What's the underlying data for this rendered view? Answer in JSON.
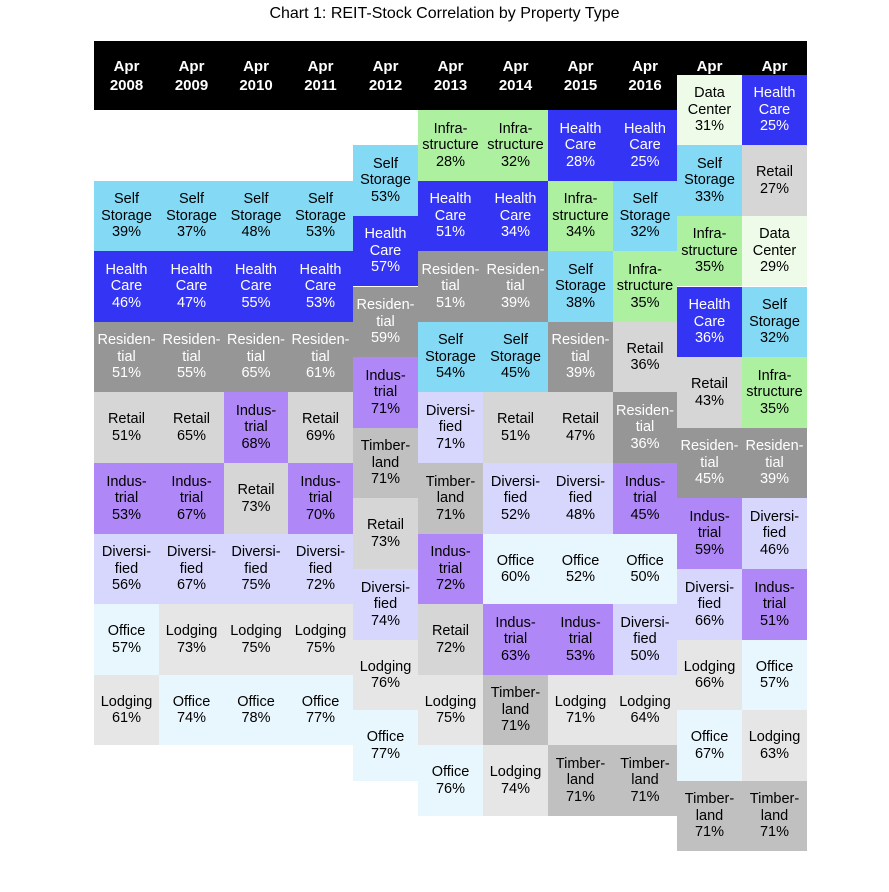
{
  "chart_data": {
    "type": "table",
    "title": "Chart 1: REIT-Stock Correlation by Property Type",
    "columns": [
      {
        "label": [
          "Apr",
          "2008"
        ],
        "items": [
          {
            "label": [
              "Self",
              "Storage"
            ],
            "value": "39%",
            "category": "Self Storage"
          },
          {
            "label": [
              "Health",
              "Care"
            ],
            "value": "46%",
            "category": "Health Care"
          },
          {
            "label": [
              "Residen-",
              "tial"
            ],
            "value": "51%",
            "category": "Residential"
          },
          {
            "label": [
              "Retail"
            ],
            "value": "51%",
            "category": "Retail"
          },
          {
            "label": [
              "Indus-",
              "trial"
            ],
            "value": "53%",
            "category": "Industrial"
          },
          {
            "label": [
              "Diversi-",
              "fied"
            ],
            "value": "56%",
            "category": "Diversified"
          },
          {
            "label": [
              "Office"
            ],
            "value": "57%",
            "category": "Office"
          },
          {
            "label": [
              "Lodging"
            ],
            "value": "61%",
            "category": "Lodging"
          }
        ]
      },
      {
        "label": [
          "Apr",
          "2009"
        ],
        "items": [
          {
            "label": [
              "Self",
              "Storage"
            ],
            "value": "37%",
            "category": "Self Storage"
          },
          {
            "label": [
              "Health",
              "Care"
            ],
            "value": "47%",
            "category": "Health Care"
          },
          {
            "label": [
              "Residen-",
              "tial"
            ],
            "value": "55%",
            "category": "Residential"
          },
          {
            "label": [
              "Retail"
            ],
            "value": "65%",
            "category": "Retail"
          },
          {
            "label": [
              "Indus-",
              "trial"
            ],
            "value": "67%",
            "category": "Industrial"
          },
          {
            "label": [
              "Diversi-",
              "fied"
            ],
            "value": "67%",
            "category": "Diversified"
          },
          {
            "label": [
              "Lodging"
            ],
            "value": "73%",
            "category": "Lodging"
          },
          {
            "label": [
              "Office"
            ],
            "value": "74%",
            "category": "Office"
          }
        ]
      },
      {
        "label": [
          "Apr",
          "2010"
        ],
        "items": [
          {
            "label": [
              "Self",
              "Storage"
            ],
            "value": "48%",
            "category": "Self Storage"
          },
          {
            "label": [
              "Health",
              "Care"
            ],
            "value": "55%",
            "category": "Health Care"
          },
          {
            "label": [
              "Residen-",
              "tial"
            ],
            "value": "65%",
            "category": "Residential"
          },
          {
            "label": [
              "Indus-",
              "trial"
            ],
            "value": "68%",
            "category": "Industrial"
          },
          {
            "label": [
              "Retail"
            ],
            "value": "73%",
            "category": "Retail"
          },
          {
            "label": [
              "Diversi-",
              "fied"
            ],
            "value": "75%",
            "category": "Diversified"
          },
          {
            "label": [
              "Lodging"
            ],
            "value": "75%",
            "category": "Lodging"
          },
          {
            "label": [
              "Office"
            ],
            "value": "78%",
            "category": "Office"
          }
        ]
      },
      {
        "label": [
          "Apr",
          "2011"
        ],
        "items": [
          {
            "label": [
              "Self",
              "Storage"
            ],
            "value": "53%",
            "category": "Self Storage"
          },
          {
            "label": [
              "Health",
              "Care"
            ],
            "value": "53%",
            "category": "Health Care"
          },
          {
            "label": [
              "Residen-",
              "tial"
            ],
            "value": "61%",
            "category": "Residential"
          },
          {
            "label": [
              "Retail"
            ],
            "value": "69%",
            "category": "Retail"
          },
          {
            "label": [
              "Indus-",
              "trial"
            ],
            "value": "70%",
            "category": "Industrial"
          },
          {
            "label": [
              "Diversi-",
              "fied"
            ],
            "value": "72%",
            "category": "Diversified"
          },
          {
            "label": [
              "Lodging"
            ],
            "value": "75%",
            "category": "Lodging"
          },
          {
            "label": [
              "Office"
            ],
            "value": "77%",
            "category": "Office"
          }
        ]
      },
      {
        "label": [
          "Apr",
          "2012"
        ],
        "items": [
          {
            "label": [
              "Self",
              "Storage"
            ],
            "value": "53%",
            "category": "Self Storage"
          },
          {
            "label": [
              "Health",
              "Care"
            ],
            "value": "57%",
            "category": "Health Care"
          },
          {
            "label": [
              "Residen-",
              "tial"
            ],
            "value": "59%",
            "category": "Residential"
          },
          {
            "label": [
              "Indus-",
              "trial"
            ],
            "value": "71%",
            "category": "Industrial"
          },
          {
            "label": [
              "Timber-",
              "land"
            ],
            "value": "71%",
            "category": "Timberland"
          },
          {
            "label": [
              "Retail"
            ],
            "value": "73%",
            "category": "Retail"
          },
          {
            "label": [
              "Diversi-",
              "fied"
            ],
            "value": "74%",
            "category": "Diversified"
          },
          {
            "label": [
              "Lodging"
            ],
            "value": "76%",
            "category": "Lodging"
          },
          {
            "label": [
              "Office"
            ],
            "value": "77%",
            "category": "Office"
          }
        ]
      },
      {
        "label": [
          "Apr",
          "2013"
        ],
        "items": [
          {
            "label": [
              "Infra-",
              "structure"
            ],
            "value": "28%",
            "category": "Infrastructure"
          },
          {
            "label": [
              "Health",
              "Care"
            ],
            "value": "51%",
            "category": "Health Care"
          },
          {
            "label": [
              "Residen-",
              "tial"
            ],
            "value": "51%",
            "category": "Residential"
          },
          {
            "label": [
              "Self",
              "Storage"
            ],
            "value": "54%",
            "category": "Self Storage"
          },
          {
            "label": [
              "Diversi-",
              "fied"
            ],
            "value": "71%",
            "category": "Diversified"
          },
          {
            "label": [
              "Timber-",
              "land"
            ],
            "value": "71%",
            "category": "Timberland"
          },
          {
            "label": [
              "Indus-",
              "trial"
            ],
            "value": "72%",
            "category": "Industrial"
          },
          {
            "label": [
              "Retail"
            ],
            "value": "72%",
            "category": "Retail"
          },
          {
            "label": [
              "Lodging"
            ],
            "value": "75%",
            "category": "Lodging"
          },
          {
            "label": [
              "Office"
            ],
            "value": "76%",
            "category": "Office"
          }
        ]
      },
      {
        "label": [
          "Apr",
          "2014"
        ],
        "items": [
          {
            "label": [
              "Infra-",
              "structure"
            ],
            "value": "32%",
            "category": "Infrastructure"
          },
          {
            "label": [
              "Health",
              "Care"
            ],
            "value": "34%",
            "category": "Health Care"
          },
          {
            "label": [
              "Residen-",
              "tial"
            ],
            "value": "39%",
            "category": "Residential"
          },
          {
            "label": [
              "Self",
              "Storage"
            ],
            "value": "45%",
            "category": "Self Storage"
          },
          {
            "label": [
              "Retail"
            ],
            "value": "51%",
            "category": "Retail"
          },
          {
            "label": [
              "Diversi-",
              "fied"
            ],
            "value": "52%",
            "category": "Diversified"
          },
          {
            "label": [
              "Office"
            ],
            "value": "60%",
            "category": "Office"
          },
          {
            "label": [
              "Indus-",
              "trial"
            ],
            "value": "63%",
            "category": "Industrial"
          },
          {
            "label": [
              "Timber-",
              "land"
            ],
            "value": "71%",
            "category": "Timberland"
          },
          {
            "label": [
              "Lodging"
            ],
            "value": "74%",
            "category": "Lodging"
          }
        ]
      },
      {
        "label": [
          "Apr",
          "2015"
        ],
        "items": [
          {
            "label": [
              "Health",
              "Care"
            ],
            "value": "28%",
            "category": "Health Care"
          },
          {
            "label": [
              "Infra-",
              "structure"
            ],
            "value": "34%",
            "category": "Infrastructure"
          },
          {
            "label": [
              "Self",
              "Storage"
            ],
            "value": "38%",
            "category": "Self Storage"
          },
          {
            "label": [
              "Residen-",
              "tial"
            ],
            "value": "39%",
            "category": "Residential"
          },
          {
            "label": [
              "Retail"
            ],
            "value": "47%",
            "category": "Retail"
          },
          {
            "label": [
              "Diversi-",
              "fied"
            ],
            "value": "48%",
            "category": "Diversified"
          },
          {
            "label": [
              "Office"
            ],
            "value": "52%",
            "category": "Office"
          },
          {
            "label": [
              "Indus-",
              "trial"
            ],
            "value": "53%",
            "category": "Industrial"
          },
          {
            "label": [
              "Lodging"
            ],
            "value": "71%",
            "category": "Lodging"
          },
          {
            "label": [
              "Timber-",
              "land"
            ],
            "value": "71%",
            "category": "Timberland"
          }
        ]
      },
      {
        "label": [
          "Apr",
          "2016"
        ],
        "items": [
          {
            "label": [
              "Health",
              "Care"
            ],
            "value": "25%",
            "category": "Health Care"
          },
          {
            "label": [
              "Self",
              "Storage"
            ],
            "value": "32%",
            "category": "Self Storage"
          },
          {
            "label": [
              "Infra-",
              "structure"
            ],
            "value": "35%",
            "category": "Infrastructure"
          },
          {
            "label": [
              "Retail"
            ],
            "value": "36%",
            "category": "Retail"
          },
          {
            "label": [
              "Residen-",
              "tial"
            ],
            "value": "36%",
            "category": "Residential"
          },
          {
            "label": [
              "Indus-",
              "trial"
            ],
            "value": "45%",
            "category": "Industrial"
          },
          {
            "label": [
              "Office"
            ],
            "value": "50%",
            "category": "Office"
          },
          {
            "label": [
              "Diversi-",
              "fied"
            ],
            "value": "50%",
            "category": "Diversified"
          },
          {
            "label": [
              "Lodging"
            ],
            "value": "64%",
            "category": "Lodging"
          },
          {
            "label": [
              "Timber-",
              "land"
            ],
            "value": "71%",
            "category": "Timberland"
          }
        ]
      },
      {
        "label": [
          "Apr",
          "2017"
        ],
        "items": [
          {
            "label": [
              "Data",
              "Center"
            ],
            "value": "31%",
            "category": "Data Center"
          },
          {
            "label": [
              "Self",
              "Storage"
            ],
            "value": "33%",
            "category": "Self Storage"
          },
          {
            "label": [
              "Infra-",
              "structure"
            ],
            "value": "35%",
            "category": "Infrastructure"
          },
          {
            "label": [
              "Health",
              "Care"
            ],
            "value": "36%",
            "category": "Health Care"
          },
          {
            "label": [
              "Retail"
            ],
            "value": "43%",
            "category": "Retail"
          },
          {
            "label": [
              "Residen-",
              "tial"
            ],
            "value": "45%",
            "category": "Residential"
          },
          {
            "label": [
              "Indus-",
              "trial"
            ],
            "value": "59%",
            "category": "Industrial"
          },
          {
            "label": [
              "Diversi-",
              "fied"
            ],
            "value": "66%",
            "category": "Diversified"
          },
          {
            "label": [
              "Lodging"
            ],
            "value": "66%",
            "category": "Lodging"
          },
          {
            "label": [
              "Office"
            ],
            "value": "67%",
            "category": "Office"
          },
          {
            "label": [
              "Timber-",
              "land"
            ],
            "value": "71%",
            "category": "Timberland"
          }
        ]
      },
      {
        "label": [
          "Apr",
          "2018"
        ],
        "items": [
          {
            "label": [
              "Health",
              "Care"
            ],
            "value": "25%",
            "category": "Health Care"
          },
          {
            "label": [
              "Retail"
            ],
            "value": "27%",
            "category": "Retail"
          },
          {
            "label": [
              "Data",
              "Center"
            ],
            "value": "29%",
            "category": "Data Center"
          },
          {
            "label": [
              "Self",
              "Storage"
            ],
            "value": "32%",
            "category": "Self Storage"
          },
          {
            "label": [
              "Infra-",
              "structure"
            ],
            "value": "35%",
            "category": "Infrastructure"
          },
          {
            "label": [
              "Residen-",
              "tial"
            ],
            "value": "39%",
            "category": "Residential"
          },
          {
            "label": [
              "Diversi-",
              "fied"
            ],
            "value": "46%",
            "category": "Diversified"
          },
          {
            "label": [
              "Indus-",
              "trial"
            ],
            "value": "51%",
            "category": "Industrial"
          },
          {
            "label": [
              "Office"
            ],
            "value": "57%",
            "category": "Office"
          },
          {
            "label": [
              "Lodging"
            ],
            "value": "63%",
            "category": "Lodging"
          },
          {
            "label": [
              "Timber-",
              "land"
            ],
            "value": "71%",
            "category": "Timberland"
          }
        ]
      }
    ],
    "category_colors": {
      "Self Storage": {
        "bg": "#84d9f5",
        "fg": "#000000"
      },
      "Health Care": {
        "bg": "#3434f4",
        "fg": "#ffffff"
      },
      "Residential": {
        "bg": "#969696",
        "fg": "#ffffff"
      },
      "Retail": {
        "bg": "#d6d6d6",
        "fg": "#000000"
      },
      "Industrial": {
        "bg": "#b087f7",
        "fg": "#000000"
      },
      "Diversified": {
        "bg": "#d7d7fd",
        "fg": "#000000"
      },
      "Office": {
        "bg": "#e8f6fd",
        "fg": "#000000"
      },
      "Lodging": {
        "bg": "#e6e6e6",
        "fg": "#000000"
      },
      "Infrastructure": {
        "bg": "#adf0a0",
        "fg": "#000000"
      },
      "Timberland": {
        "bg": "#c0c0c0",
        "fg": "#000000"
      },
      "Data Center": {
        "bg": "#eefbe9",
        "fg": "#000000"
      }
    },
    "header_colors": {
      "bg": "#000000",
      "fg": "#ffffff"
    }
  }
}
